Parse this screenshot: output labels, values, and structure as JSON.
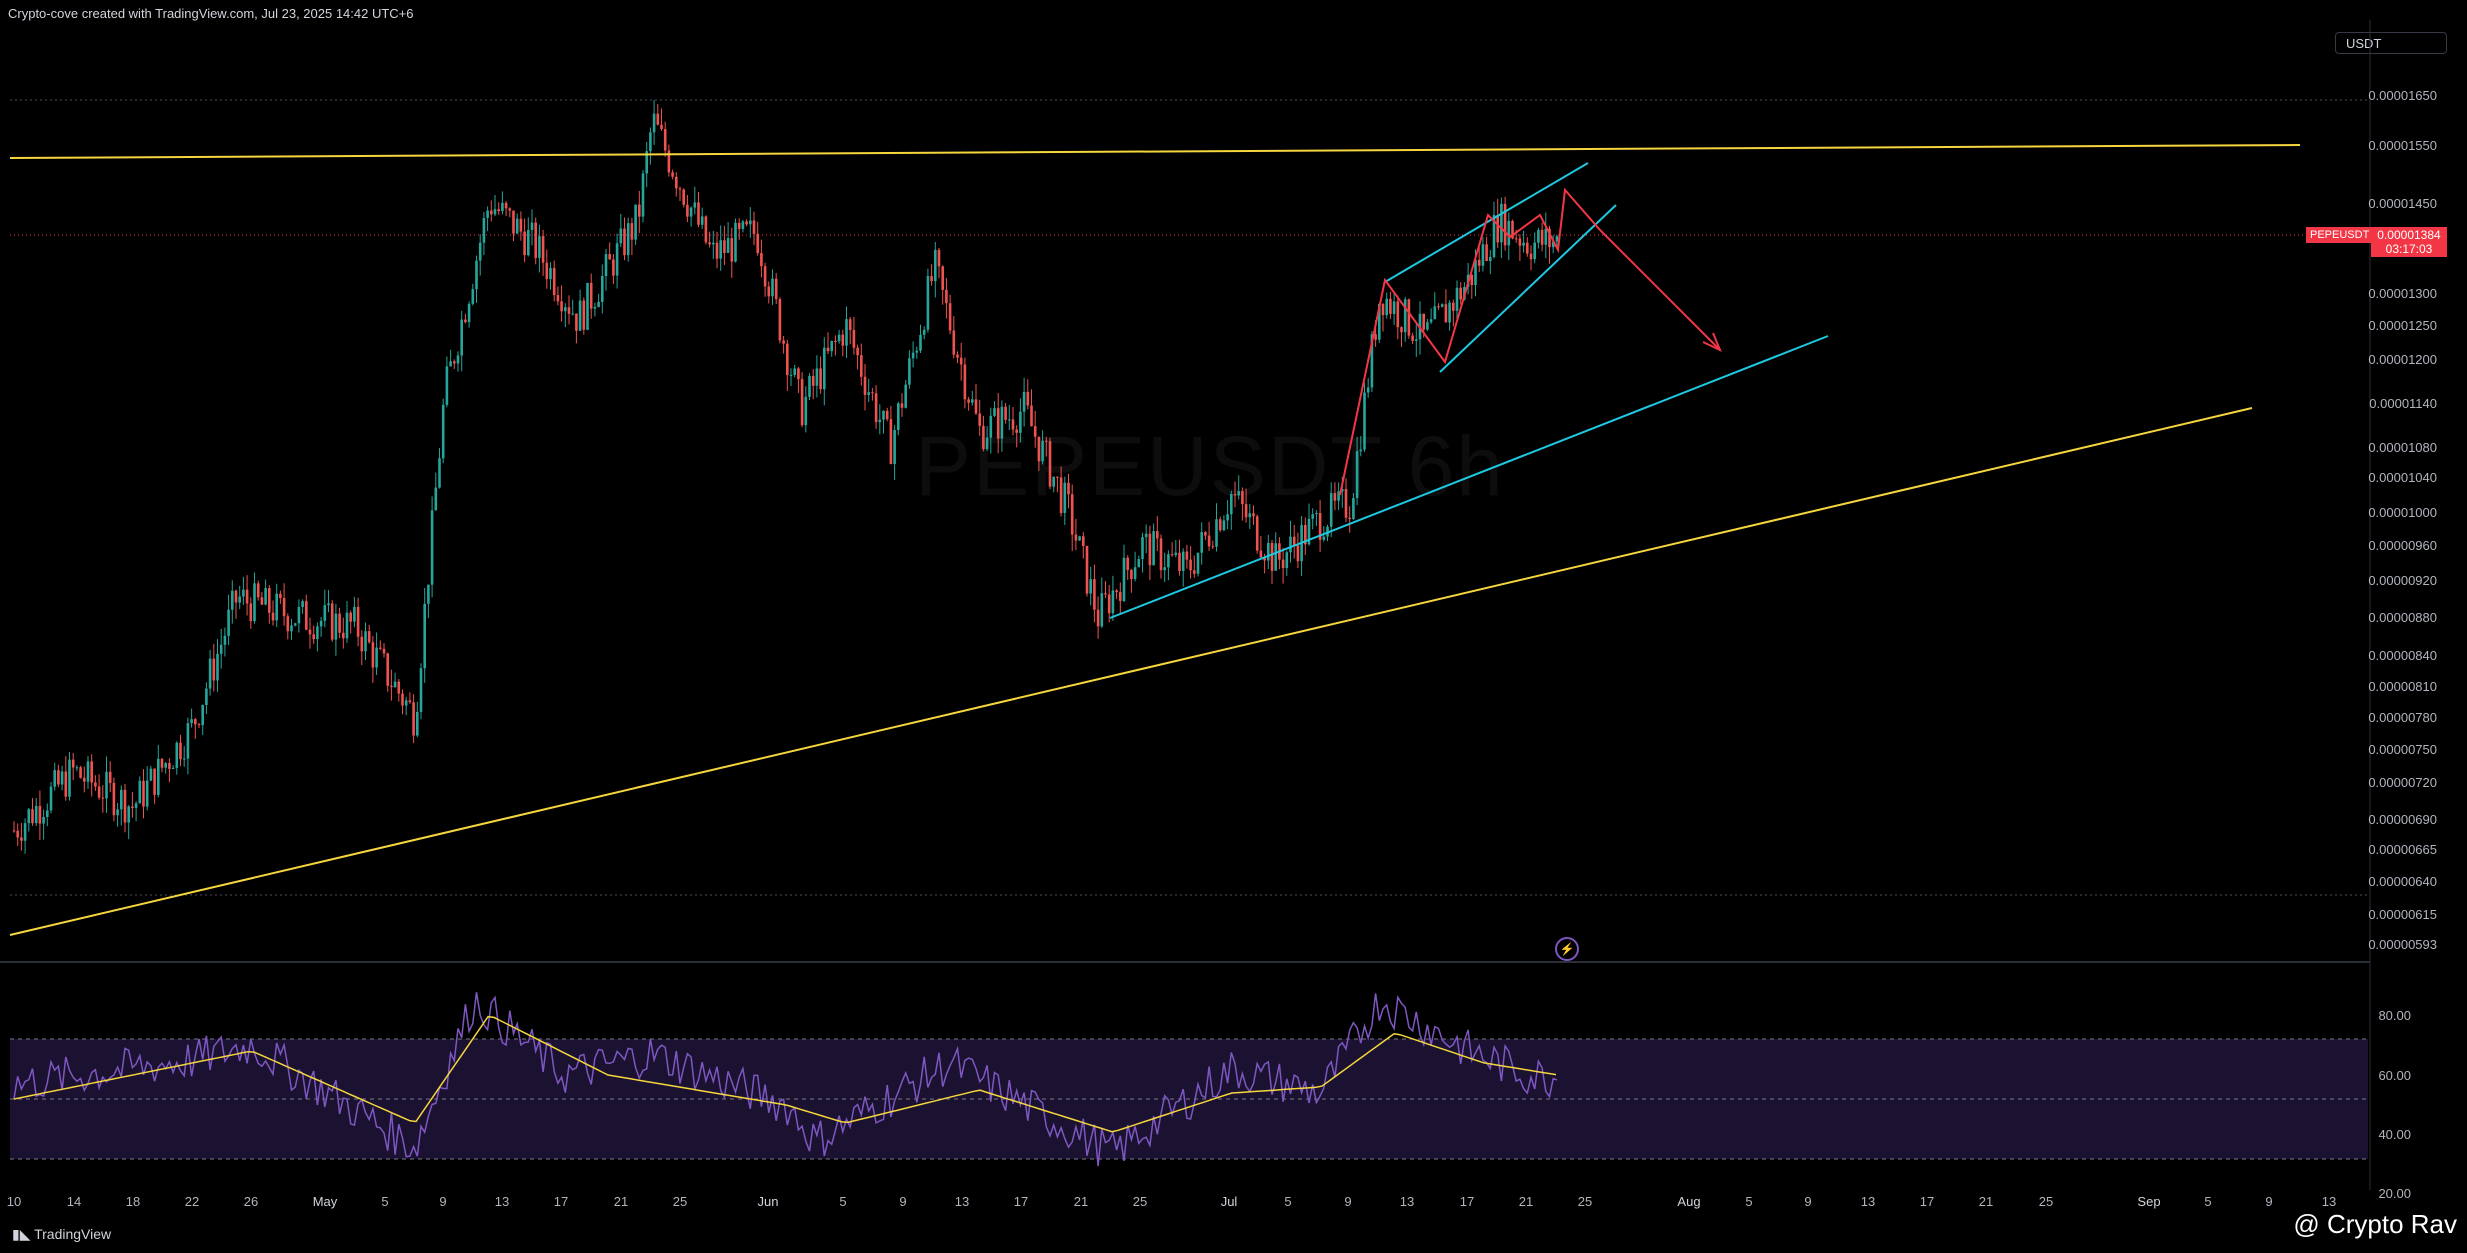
{
  "header": {
    "title": "Crypto-cove created with TradingView.com, Jul 23, 2025 14:42 UTC+6"
  },
  "toolbar": {
    "currency": "USDT"
  },
  "price_badge": {
    "symbol": "PEPEUSDT",
    "price": "0.00001384",
    "countdown": "03:17:03"
  },
  "watermark": {
    "text": "PEPEUSDT 6h"
  },
  "footer": {
    "logo": "TradingView",
    "credit": "@ Crypto Rav"
  },
  "chart_data": [
    {
      "type": "candlestick",
      "title": "",
      "symbol": "PEPEUSDT",
      "interval": "6h",
      "y_axis_ticks": [
        "0.00001650",
        "0.00001550",
        "0.00001450",
        "0.00001300",
        "0.00001250",
        "0.00001200",
        "0.00001140",
        "0.00001080",
        "0.00001040",
        "0.00001000",
        "0.00000960",
        "0.00000920",
        "0.00000880",
        "0.00000840",
        "0.00000810",
        "0.00000780",
        "0.00000750",
        "0.00000720",
        "0.00000690",
        "0.00000665",
        "0.00000640",
        "0.00000615",
        "0.00000593"
      ],
      "x_axis_ticks": [
        "10",
        "14",
        "18",
        "22",
        "26",
        "May",
        "5",
        "9",
        "13",
        "17",
        "21",
        "25",
        "Jun",
        "5",
        "9",
        "13",
        "17",
        "21",
        "25",
        "Jul",
        "5",
        "9",
        "13",
        "17",
        "21",
        "25",
        "Aug",
        "5",
        "9",
        "13",
        "17",
        "21",
        "25",
        "Sep",
        "5",
        "9",
        "13"
      ],
      "y_scale": "log",
      "approx_close_path": [
        {
          "x": "Apr 10",
          "y": 6.8e-06
        },
        {
          "x": "Apr 14",
          "y": 7.3e-06
        },
        {
          "x": "Apr 18",
          "y": 7e-06
        },
        {
          "x": "Apr 22",
          "y": 7.7e-06
        },
        {
          "x": "Apr 25",
          "y": 9e-06
        },
        {
          "x": "Apr 29",
          "y": 8.8e-06
        },
        {
          "x": "May 3",
          "y": 8.7e-06
        },
        {
          "x": "May 7",
          "y": 7.8e-06
        },
        {
          "x": "May 9",
          "y": 1.15e-05
        },
        {
          "x": "May 12",
          "y": 1.45e-05
        },
        {
          "x": "May 15",
          "y": 1.38e-05
        },
        {
          "x": "May 18",
          "y": 1.26e-05
        },
        {
          "x": "May 22",
          "y": 1.42e-05
        },
        {
          "x": "May 23",
          "y": 1.6e-05
        },
        {
          "x": "May 27",
          "y": 1.36e-05
        },
        {
          "x": "May 30",
          "y": 1.4e-05
        },
        {
          "x": "Jun 2",
          "y": 1.13e-05
        },
        {
          "x": "Jun 5",
          "y": 1.25e-05
        },
        {
          "x": "Jun 8",
          "y": 1.08e-05
        },
        {
          "x": "Jun 11",
          "y": 1.34e-05
        },
        {
          "x": "Jun 14",
          "y": 1.1e-05
        },
        {
          "x": "Jun 17",
          "y": 1.13e-05
        },
        {
          "x": "Jun 20",
          "y": 1e-05
        },
        {
          "x": "Jun 22",
          "y": 8.8e-06
        },
        {
          "x": "Jun 25",
          "y": 9.6e-06
        },
        {
          "x": "Jun 28",
          "y": 9.3e-06
        },
        {
          "x": "Jul 1",
          "y": 1.02e-05
        },
        {
          "x": "Jul 4",
          "y": 9.4e-06
        },
        {
          "x": "Jul 7",
          "y": 9.9e-06
        },
        {
          "x": "Jul 9",
          "y": 1.01e-05
        },
        {
          "x": "Jul 11",
          "y": 1.3e-05
        },
        {
          "x": "Jul 14",
          "y": 1.23e-05
        },
        {
          "x": "Jul 17",
          "y": 1.32e-05
        },
        {
          "x": "Jul 19",
          "y": 1.42e-05
        },
        {
          "x": "Jul 21",
          "y": 1.38e-05
        },
        {
          "x": "Jul 23",
          "y": 1.384e-05
        }
      ],
      "last_price": 1.384e-05
    },
    {
      "type": "line",
      "title": "",
      "y_axis_ticks": [
        "80.00",
        "60.00",
        "40.00",
        "20.00"
      ],
      "bands": [
        70,
        50,
        30
      ],
      "approx_rsi": [
        {
          "x": "Apr 10",
          "y": 55
        },
        {
          "x": "Apr 22",
          "y": 63
        },
        {
          "x": "Apr 26",
          "y": 68
        },
        {
          "x": "May 5",
          "y": 40
        },
        {
          "x": "May 7",
          "y": 34
        },
        {
          "x": "May 11",
          "y": 83
        },
        {
          "x": "May 17",
          "y": 58
        },
        {
          "x": "May 23",
          "y": 65
        },
        {
          "x": "Jun 1",
          "y": 48
        },
        {
          "x": "Jun 3",
          "y": 36
        },
        {
          "x": "Jun 12",
          "y": 62
        },
        {
          "x": "Jun 20",
          "y": 40
        },
        {
          "x": "Jun 23",
          "y": 32
        },
        {
          "x": "Jul 1",
          "y": 60
        },
        {
          "x": "Jul 7",
          "y": 52
        },
        {
          "x": "Jul 11",
          "y": 83
        },
        {
          "x": "Jul 17",
          "y": 66
        },
        {
          "x": "Jul 21",
          "y": 58
        },
        {
          "x": "Jul 23",
          "y": 57
        }
      ],
      "approx_rsi_ma": [
        {
          "x": "Apr 10",
          "y": 50
        },
        {
          "x": "Apr 26",
          "y": 66
        },
        {
          "x": "May 7",
          "y": 42
        },
        {
          "x": "May 12",
          "y": 78
        },
        {
          "x": "May 20",
          "y": 58
        },
        {
          "x": "Jun 1",
          "y": 48
        },
        {
          "x": "Jun 5",
          "y": 42
        },
        {
          "x": "Jun 14",
          "y": 53
        },
        {
          "x": "Jun 23",
          "y": 39
        },
        {
          "x": "Jul 1",
          "y": 52
        },
        {
          "x": "Jul 7",
          "y": 54
        },
        {
          "x": "Jul 12",
          "y": 72
        },
        {
          "x": "Jul 18",
          "y": 62
        },
        {
          "x": "Jul 23",
          "y": 58
        }
      ]
    }
  ]
}
